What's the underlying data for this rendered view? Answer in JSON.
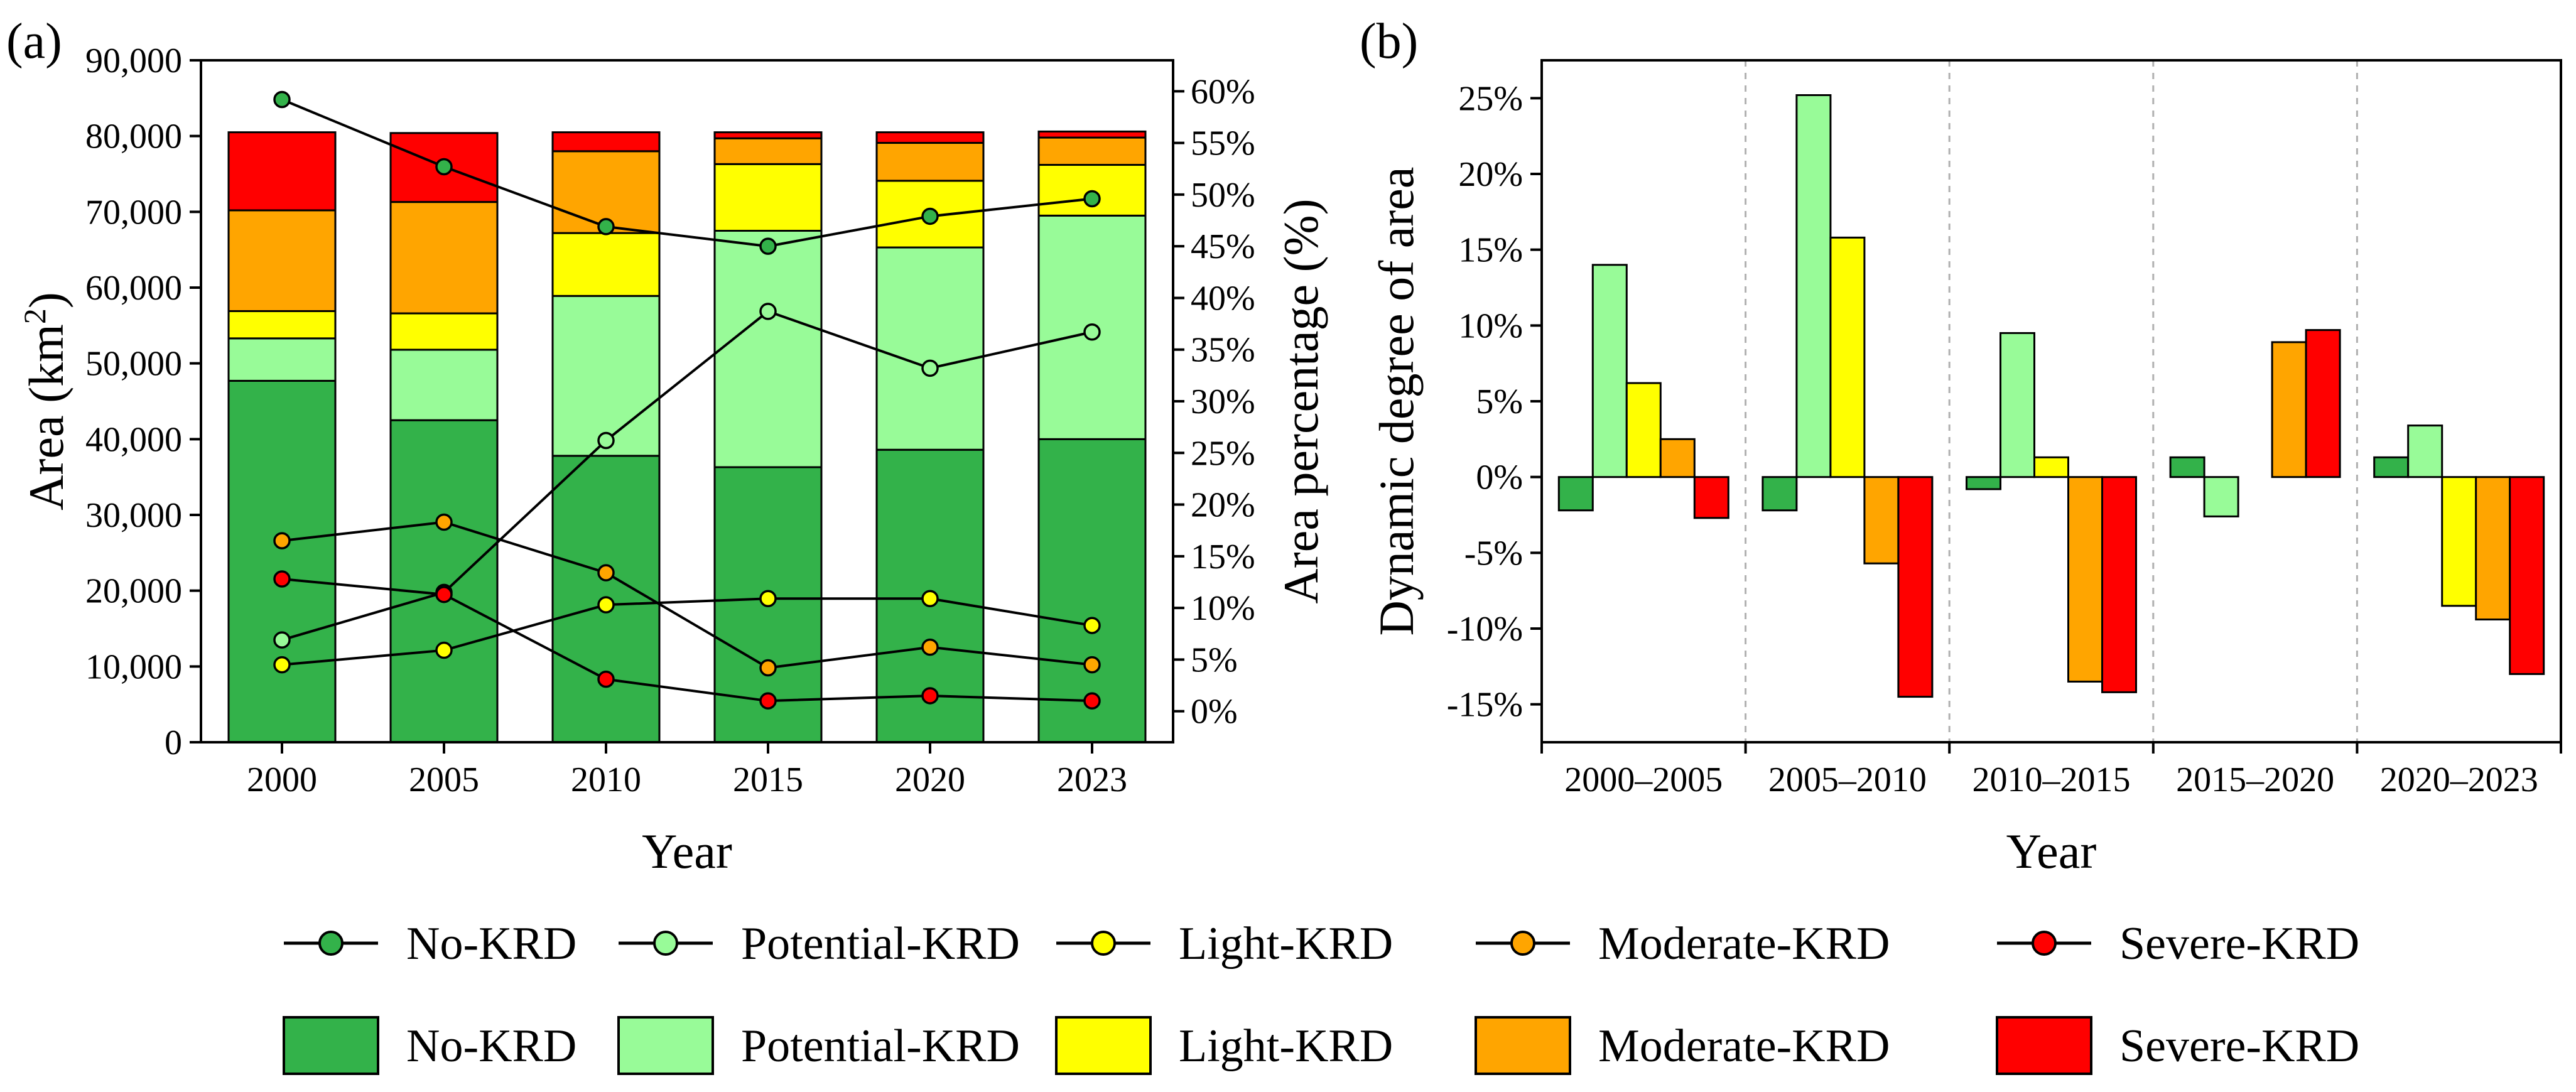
{
  "panel_labels": {
    "a": "(a)",
    "b": "(b)"
  },
  "colors": {
    "no_krd": "#33B24A",
    "potential_krd": "#98FB98",
    "light_krd": "#FFFF00",
    "moderate_krd": "#FFA500",
    "severe_krd": "#FF0000",
    "line": "#000000"
  },
  "legend": {
    "line_items": [
      "No-KRD",
      "Potential-KRD",
      "Light-KRD",
      "Moderate-KRD",
      "Severe-KRD"
    ],
    "bar_items": [
      "No-KRD",
      "Potential-KRD",
      "Light-KRD",
      "Moderate-KRD",
      "Severe-KRD"
    ]
  },
  "chart_data": [
    {
      "id": "a",
      "type": "bar",
      "stacked": true,
      "title": "",
      "xlabel": "Year",
      "ylabel": "Area (km²)",
      "ylabel_main": "Area (km",
      "ylabel_sup": "2",
      "ylabel_end": ")",
      "y2label": "Area percentage (%)",
      "ylim": [
        0,
        90000
      ],
      "y2lim": [
        -3,
        63
      ],
      "yticks": [
        "0",
        "10,000",
        "20,000",
        "30,000",
        "40,000",
        "50,000",
        "60,000",
        "70,000",
        "80,000",
        "90,000"
      ],
      "y2ticks": [
        "0%",
        "5%",
        "10%",
        "15%",
        "20%",
        "25%",
        "30%",
        "35%",
        "40%",
        "45%",
        "50%",
        "55%",
        "60%"
      ],
      "categories": [
        "2000",
        "2005",
        "2010",
        "2015",
        "2020",
        "2023"
      ],
      "series": [
        {
          "name": "No-KRD",
          "values": [
            47700,
            42500,
            37800,
            36300,
            38600,
            40000
          ]
        },
        {
          "name": "Potential-KRD",
          "values": [
            5600,
            9300,
            21100,
            31200,
            26700,
            29500
          ]
        },
        {
          "name": "Light-KRD",
          "values": [
            3600,
            4800,
            8300,
            8800,
            8800,
            6700
          ]
        },
        {
          "name": "Moderate-KRD",
          "values": [
            13300,
            14700,
            10800,
            3400,
            5000,
            3600
          ]
        },
        {
          "name": "Severe-KRD",
          "values": [
            10300,
            9100,
            2500,
            800,
            1400,
            800
          ]
        }
      ],
      "line_series": [
        {
          "name": "No-KRD",
          "values": [
            59.2,
            52.7,
            46.9,
            45.0,
            47.9,
            49.6
          ]
        },
        {
          "name": "Potential-KRD",
          "values": [
            6.9,
            11.5,
            26.2,
            38.7,
            33.2,
            36.7
          ]
        },
        {
          "name": "Light-KRD",
          "values": [
            4.5,
            5.9,
            10.3,
            10.9,
            10.9,
            8.3
          ]
        },
        {
          "name": "Moderate-KRD",
          "values": [
            16.5,
            18.3,
            13.4,
            4.2,
            6.2,
            4.5
          ]
        },
        {
          "name": "Severe-KRD",
          "values": [
            12.8,
            11.3,
            3.1,
            1.0,
            1.5,
            1.0
          ]
        }
      ]
    },
    {
      "id": "b",
      "type": "bar",
      "title": "",
      "xlabel": "Year",
      "ylabel": "Dynamic degree of area",
      "ylim": [
        -17.5,
        27.5
      ],
      "yticks": [
        "-15%",
        "-10%",
        "-5%",
        "0%",
        "5%",
        "10%",
        "15%",
        "20%",
        "25%"
      ],
      "ytick_values": [
        -15,
        -10,
        -5,
        0,
        5,
        10,
        15,
        20,
        25
      ],
      "categories": [
        "2000–2005",
        "2005–2010",
        "2010–2015",
        "2015–2020",
        "2020–2023"
      ],
      "series": [
        {
          "name": "No-KRD",
          "values": [
            -2.2,
            -2.2,
            -0.8,
            1.3,
            1.3
          ]
        },
        {
          "name": "Potential-KRD",
          "values": [
            14.0,
            25.2,
            9.5,
            -2.6,
            3.4
          ]
        },
        {
          "name": "Light-KRD",
          "values": [
            6.2,
            15.8,
            1.3,
            0.0,
            -8.5
          ]
        },
        {
          "name": "Moderate-KRD",
          "values": [
            2.5,
            -5.7,
            -13.5,
            8.9,
            -9.4
          ]
        },
        {
          "name": "Severe-KRD",
          "values": [
            -2.7,
            -14.5,
            -14.2,
            9.7,
            -13.0
          ]
        }
      ]
    }
  ]
}
